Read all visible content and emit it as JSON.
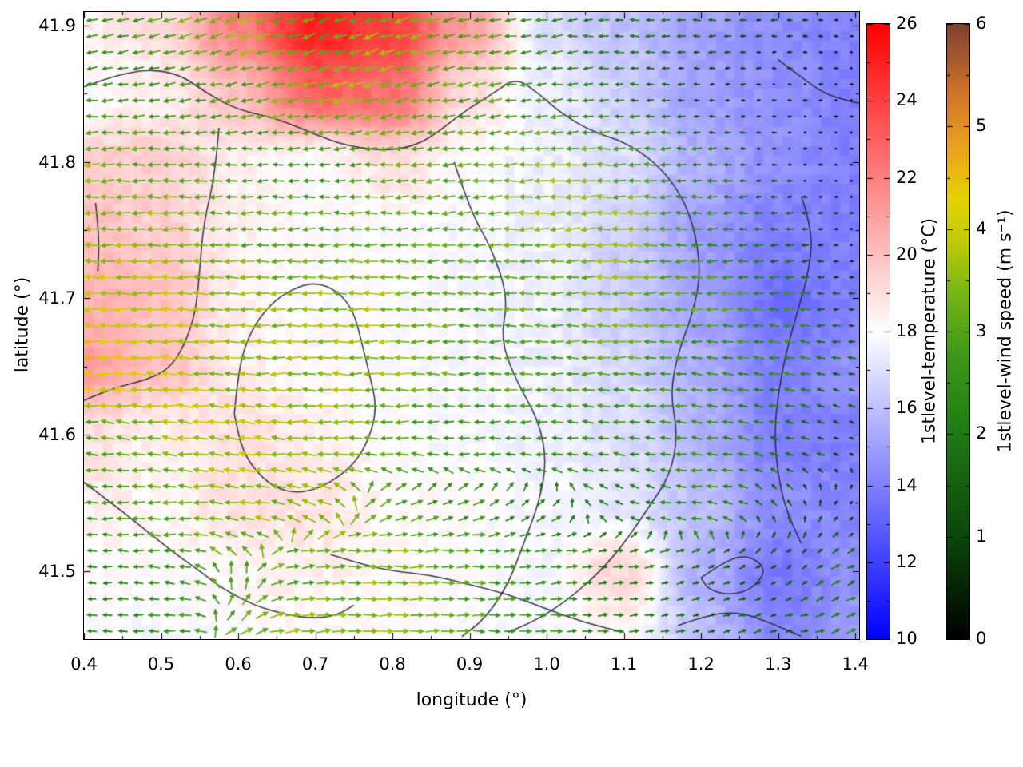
{
  "axes": {
    "xlabel": "longitude (°)",
    "ylabel": "latitude (°)",
    "xlim": [
      0.4,
      1.405
    ],
    "ylim": [
      41.45,
      41.91
    ],
    "x_tick_values": [
      0.4,
      0.5,
      0.6,
      0.7,
      0.8,
      0.9,
      1.0,
      1.1,
      1.2,
      1.3,
      1.4
    ],
    "x_tick_labels": [
      "0.4",
      "0.5",
      "0.6",
      "0.7",
      "0.8",
      "0.9",
      "1.0",
      "1.1",
      "1.2",
      "1.3",
      "1.4"
    ],
    "y_tick_values": [
      41.5,
      41.6,
      41.7,
      41.8,
      41.9
    ],
    "y_tick_labels": [
      "41.5",
      "41.6",
      "41.7",
      "41.8",
      "41.9"
    ]
  },
  "colorbars": [
    {
      "id": "temperature",
      "label": "1stlevel-temperature (°C)",
      "min": 10,
      "max": 26,
      "tick_values": [
        10,
        12,
        14,
        16,
        18,
        20,
        22,
        24,
        26
      ],
      "tick_labels": [
        "10",
        "12",
        "14",
        "16",
        "18",
        "20",
        "22",
        "24",
        "26"
      ],
      "stops": [
        {
          "v": 10,
          "c": "#0000ff"
        },
        {
          "v": 18,
          "c": "#ffffff"
        },
        {
          "v": 26,
          "c": "#ff0000"
        }
      ]
    },
    {
      "id": "wind",
      "label": "1stlevel-wind speed (m s⁻¹)",
      "min": 0,
      "max": 6,
      "tick_values": [
        0,
        1,
        2,
        3,
        4,
        5,
        6
      ],
      "tick_labels": [
        "0",
        "1",
        "2",
        "3",
        "4",
        "5",
        "6"
      ],
      "stops": [
        {
          "v": 0,
          "c": "#000000"
        },
        {
          "v": 1,
          "c": "#0b470b"
        },
        {
          "v": 2,
          "c": "#1e7a14"
        },
        {
          "v": 2.8,
          "c": "#3f9a1a"
        },
        {
          "v": 3.4,
          "c": "#7ab814"
        },
        {
          "v": 3.9,
          "c": "#c2cc00"
        },
        {
          "v": 4.3,
          "c": "#e6d200"
        },
        {
          "v": 4.8,
          "c": "#eaa21e"
        },
        {
          "v": 5.3,
          "c": "#d4762a"
        },
        {
          "v": 6,
          "c": "#7e4030"
        }
      ]
    }
  ],
  "chart_data": {
    "type": "heatmap",
    "overlay": "quiver",
    "title": "",
    "xlabel": "longitude (°)",
    "ylabel": "latitude (°)",
    "xlim": [
      0.4,
      1.4
    ],
    "ylim": [
      41.45,
      41.91
    ],
    "colorbar_temperature": {
      "label": "1stlevel-temperature (°C)",
      "range": [
        10,
        26
      ]
    },
    "colorbar_wind_speed": {
      "label": "1stlevel-wind speed (m s⁻¹)",
      "range": [
        0,
        6
      ]
    },
    "lon": [
      0.4,
      0.5,
      0.6,
      0.7,
      0.8,
      0.9,
      1.0,
      1.1,
      1.2,
      1.3,
      1.4
    ],
    "lat": [
      41.45,
      41.5,
      41.55,
      41.6,
      41.65,
      41.7,
      41.75,
      41.8,
      41.85,
      41.9
    ],
    "temperature": [
      [
        18.0,
        17.8,
        18.0,
        18.2,
        18.0,
        17.9,
        17.8,
        18.3,
        16.0,
        14.2,
        15.0
      ],
      [
        18.2,
        18.0,
        18.3,
        18.5,
        18.2,
        18.0,
        17.8,
        19.3,
        15.5,
        13.8,
        14.5
      ],
      [
        18.5,
        18.3,
        19.0,
        18.8,
        18.2,
        18.0,
        17.8,
        17.2,
        16.0,
        14.5,
        14.2
      ],
      [
        19.0,
        18.5,
        19.0,
        18.5,
        18.0,
        17.8,
        17.5,
        17.0,
        15.5,
        14.0,
        14.0
      ],
      [
        21.0,
        20.0,
        18.5,
        18.2,
        18.0,
        17.8,
        17.5,
        16.8,
        15.5,
        14.0,
        14.5
      ],
      [
        20.5,
        20.0,
        18.5,
        18.0,
        18.0,
        17.8,
        17.5,
        16.5,
        15.0,
        13.5,
        14.0
      ],
      [
        20.0,
        19.5,
        18.5,
        18.0,
        18.0,
        17.8,
        17.5,
        16.5,
        15.0,
        14.0,
        14.0
      ],
      [
        19.5,
        19.5,
        18.5,
        18.0,
        19.0,
        18.0,
        17.5,
        17.0,
        15.5,
        14.5,
        14.0
      ],
      [
        18.0,
        18.5,
        20.0,
        23.0,
        22.5,
        19.0,
        17.5,
        16.5,
        15.0,
        14.5,
        14.0
      ],
      [
        18.5,
        19.0,
        22.0,
        25.0,
        24.0,
        21.0,
        17.0,
        16.0,
        15.0,
        14.5,
        14.0
      ]
    ],
    "wind_speed": [
      [
        2.0,
        2.5,
        3.0,
        3.5,
        3.5,
        3.0,
        2.5,
        2.0,
        1.5,
        1.5,
        2.5
      ],
      [
        2.0,
        2.5,
        3.0,
        3.0,
        3.5,
        3.0,
        2.5,
        2.0,
        1.5,
        1.0,
        2.0
      ],
      [
        2.5,
        3.0,
        3.5,
        3.5,
        3.0,
        2.5,
        2.0,
        2.0,
        2.5,
        1.5,
        0.5
      ],
      [
        3.0,
        3.5,
        3.8,
        3.5,
        3.0,
        2.5,
        2.5,
        2.5,
        2.5,
        2.0,
        1.0
      ],
      [
        4.5,
        4.0,
        3.5,
        3.5,
        3.5,
        3.0,
        3.0,
        3.0,
        2.5,
        2.5,
        1.5
      ],
      [
        4.0,
        3.8,
        3.5,
        3.5,
        3.5,
        3.0,
        3.0,
        3.5,
        3.0,
        2.5,
        1.0
      ],
      [
        3.5,
        3.5,
        3.0,
        3.0,
        3.0,
        3.0,
        3.5,
        3.5,
        2.5,
        1.5,
        0.5
      ],
      [
        3.5,
        3.0,
        2.5,
        2.5,
        3.0,
        3.0,
        3.5,
        3.0,
        2.0,
        0.5,
        0.3
      ],
      [
        2.5,
        2.5,
        3.0,
        3.5,
        3.5,
        3.0,
        2.5,
        2.0,
        1.0,
        0.5,
        0.3
      ],
      [
        2.5,
        3.0,
        3.5,
        3.0,
        3.5,
        3.0,
        2.5,
        2.0,
        1.5,
        1.0,
        0.5
      ]
    ],
    "wind_u": [
      [
        -1,
        -1,
        0.3,
        1,
        1,
        1,
        1,
        1,
        1,
        1,
        0.8
      ],
      [
        -1,
        -1,
        0,
        1,
        1,
        1,
        1,
        1,
        1,
        0.8,
        0.8
      ],
      [
        -1,
        -1,
        -1,
        -0.5,
        0.4,
        0.4,
        0.2,
        -0.5,
        -1,
        -0.3,
        0.3
      ],
      [
        -1,
        -1,
        -1,
        -1,
        -1,
        -1,
        -1,
        -1,
        -1,
        -1,
        -0.8
      ],
      [
        -1,
        -1,
        -1,
        -1,
        -1,
        -1,
        -1,
        -1,
        -1,
        -1,
        -1
      ],
      [
        -1,
        -1,
        -1,
        -1,
        -1,
        -1,
        -1,
        -1,
        -1,
        -1,
        -1
      ],
      [
        -1,
        -1,
        -1,
        -1,
        -1,
        -1,
        -1,
        -1,
        -1,
        -1,
        -1
      ],
      [
        -1,
        -1,
        -1,
        -1,
        -1,
        -1,
        -1,
        -1,
        -1,
        -1,
        -1
      ],
      [
        -1,
        -1,
        -1,
        -1,
        -1,
        -1,
        -1,
        -1,
        -1,
        -1,
        -1
      ],
      [
        -1,
        -1,
        -1,
        -1,
        -1,
        -1,
        -1,
        -1,
        -1,
        -1,
        -1
      ]
    ],
    "wind_v": [
      [
        0,
        0,
        0.2,
        0.1,
        0,
        0,
        0,
        0.1,
        0.2,
        0.3,
        0.3
      ],
      [
        0,
        0.1,
        0.3,
        0.1,
        0,
        0,
        0.1,
        0.1,
        0.3,
        0.5,
        0.4
      ],
      [
        0,
        0,
        0.1,
        0.2,
        0.2,
        0.2,
        0.2,
        0.2,
        0.1,
        0.4,
        0.4
      ],
      [
        0.1,
        0.1,
        0.1,
        0.05,
        0,
        0,
        0,
        0.1,
        0.1,
        0.2,
        0.3
      ],
      [
        0.1,
        0.05,
        0,
        0,
        0,
        0,
        0,
        0,
        0.1,
        0.1,
        0.2
      ],
      [
        0,
        0,
        0,
        0,
        0,
        0,
        0,
        0,
        0,
        0,
        0
      ],
      [
        0,
        0,
        0,
        0,
        0,
        -0.05,
        -0.05,
        0,
        0,
        0,
        0
      ],
      [
        -0.05,
        0,
        0,
        0,
        -0.1,
        -0.1,
        -0.05,
        0,
        0,
        0,
        0
      ],
      [
        -0.1,
        -0.15,
        -0.2,
        -0.25,
        -0.2,
        -0.15,
        -0.1,
        0,
        0,
        0,
        0
      ],
      [
        -0.2,
        -0.3,
        -0.4,
        -0.35,
        -0.3,
        -0.2,
        -0.1,
        0,
        0,
        0,
        0
      ]
    ],
    "contours": [
      [
        [
          0.4,
          41.855
        ],
        [
          0.46,
          41.868
        ],
        [
          0.52,
          41.866
        ],
        [
          0.56,
          41.85
        ],
        [
          0.6,
          41.838
        ],
        [
          0.65,
          41.832
        ],
        [
          0.7,
          41.82
        ],
        [
          0.74,
          41.812
        ],
        [
          0.79,
          41.808
        ],
        [
          0.83,
          41.812
        ],
        [
          0.86,
          41.822
        ],
        [
          0.89,
          41.836
        ],
        [
          0.93,
          41.85
        ],
        [
          0.96,
          41.862
        ],
        [
          0.99,
          41.85
        ],
        [
          1.02,
          41.835
        ],
        [
          1.06,
          41.822
        ],
        [
          1.1,
          41.815
        ],
        [
          1.14,
          41.8
        ],
        [
          1.17,
          41.78
        ],
        [
          1.19,
          41.755
        ],
        [
          1.2,
          41.72
        ],
        [
          1.19,
          41.69
        ],
        [
          1.17,
          41.66
        ],
        [
          1.16,
          41.63
        ],
        [
          1.17,
          41.6
        ],
        [
          1.16,
          41.57
        ],
        [
          1.13,
          41.545
        ],
        [
          1.1,
          41.52
        ],
        [
          1.07,
          41.5
        ],
        [
          1.03,
          41.48
        ],
        [
          0.99,
          41.465
        ],
        [
          0.95,
          41.455
        ]
      ],
      [
        [
          0.88,
          41.8
        ],
        [
          0.9,
          41.765
        ],
        [
          0.93,
          41.735
        ],
        [
          0.95,
          41.7
        ],
        [
          0.94,
          41.67
        ],
        [
          0.96,
          41.64
        ],
        [
          0.99,
          41.61
        ],
        [
          1.0,
          41.58
        ],
        [
          0.99,
          41.55
        ],
        [
          0.97,
          41.52
        ],
        [
          0.95,
          41.49
        ],
        [
          0.92,
          41.465
        ],
        [
          0.89,
          41.452
        ]
      ],
      [
        [
          0.575,
          41.825
        ],
        [
          0.57,
          41.79
        ],
        [
          0.555,
          41.755
        ],
        [
          0.55,
          41.72
        ],
        [
          0.545,
          41.69
        ],
        [
          0.53,
          41.665
        ],
        [
          0.51,
          41.648
        ],
        [
          0.48,
          41.64
        ],
        [
          0.45,
          41.636
        ],
        [
          0.42,
          41.63
        ],
        [
          0.4,
          41.625
        ]
      ],
      [
        [
          0.595,
          41.615
        ],
        [
          0.6,
          41.648
        ],
        [
          0.615,
          41.675
        ],
        [
          0.64,
          41.695
        ],
        [
          0.67,
          41.707
        ],
        [
          0.7,
          41.712
        ],
        [
          0.73,
          41.705
        ],
        [
          0.75,
          41.69
        ],
        [
          0.76,
          41.668
        ],
        [
          0.77,
          41.645
        ],
        [
          0.78,
          41.62
        ],
        [
          0.77,
          41.597
        ],
        [
          0.75,
          41.578
        ],
        [
          0.72,
          41.565
        ],
        [
          0.69,
          41.558
        ],
        [
          0.66,
          41.558
        ],
        [
          0.63,
          41.568
        ],
        [
          0.605,
          41.588
        ],
        [
          0.595,
          41.615
        ]
      ],
      [
        [
          0.4,
          41.565
        ],
        [
          0.44,
          41.548
        ],
        [
          0.48,
          41.53
        ],
        [
          0.52,
          41.512
        ],
        [
          0.55,
          41.5
        ],
        [
          0.58,
          41.487
        ],
        [
          0.62,
          41.475
        ],
        [
          0.66,
          41.468
        ],
        [
          0.7,
          41.465
        ],
        [
          0.73,
          41.468
        ],
        [
          0.75,
          41.475
        ]
      ],
      [
        [
          0.72,
          41.512
        ],
        [
          0.76,
          41.505
        ],
        [
          0.8,
          41.5
        ],
        [
          0.85,
          41.497
        ],
        [
          0.9,
          41.49
        ],
        [
          0.95,
          41.483
        ],
        [
          1.0,
          41.472
        ],
        [
          1.05,
          41.462
        ],
        [
          1.1,
          41.455
        ]
      ],
      [
        [
          1.2,
          41.495
        ],
        [
          1.23,
          41.507
        ],
        [
          1.26,
          41.512
        ],
        [
          1.285,
          41.502
        ],
        [
          1.27,
          41.488
        ],
        [
          1.24,
          41.482
        ],
        [
          1.21,
          41.486
        ],
        [
          1.2,
          41.495
        ]
      ],
      [
        [
          1.33,
          41.775
        ],
        [
          1.345,
          41.75
        ],
        [
          1.34,
          41.72
        ],
        [
          1.325,
          41.69
        ],
        [
          1.31,
          41.66
        ],
        [
          1.3,
          41.63
        ],
        [
          1.295,
          41.6
        ],
        [
          1.3,
          41.57
        ],
        [
          1.31,
          41.545
        ],
        [
          1.33,
          41.52
        ]
      ],
      [
        [
          1.17,
          41.46
        ],
        [
          1.21,
          41.468
        ],
        [
          1.25,
          41.47
        ],
        [
          1.29,
          41.462
        ],
        [
          1.33,
          41.452
        ]
      ],
      [
        [
          1.3,
          41.875
        ],
        [
          1.33,
          41.862
        ],
        [
          1.36,
          41.85
        ],
        [
          1.39,
          41.845
        ],
        [
          1.405,
          41.843
        ]
      ],
      [
        [
          0.415,
          41.77
        ],
        [
          0.42,
          41.745
        ],
        [
          0.418,
          41.72
        ]
      ]
    ]
  }
}
